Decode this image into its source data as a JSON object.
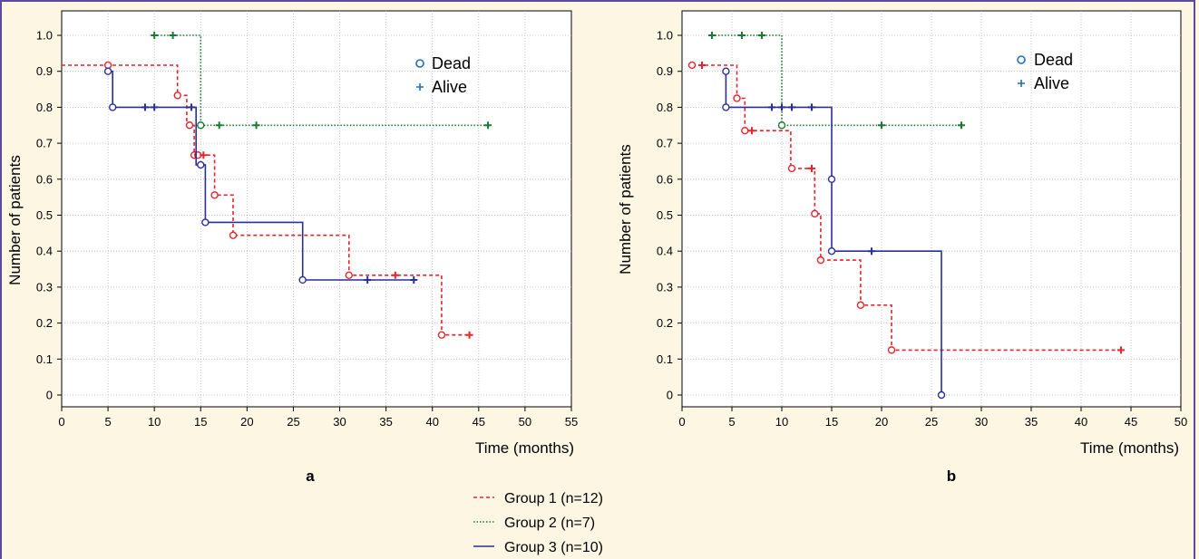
{
  "colors": {
    "group1": "#e8232a",
    "group2": "#1a7a32",
    "group3": "#2a2f9a",
    "dead_marker": "#1f6fb2",
    "alive_marker": "#1f6fb2",
    "frame": "#5b4a9e",
    "background": "#fdf6e3"
  },
  "shared_legend": [
    {
      "label": "Group 1 (n=12)",
      "series": "group1",
      "dash": "dashed"
    },
    {
      "label": "Group 2 (n=7)",
      "series": "group2",
      "dash": "dotted"
    },
    {
      "label": "Group 3 (n=10)",
      "series": "group3",
      "dash": "solid"
    }
  ],
  "chart_data": [
    {
      "type": "line",
      "panel": "a",
      "xlabel": "Time (months)",
      "ylabel": "Number of patients",
      "xlim": [
        0,
        55
      ],
      "ylim": [
        0,
        1.0
      ],
      "xticks": [
        "0",
        "5",
        "10",
        "15",
        "20",
        "25",
        "30",
        "35",
        "40",
        "45",
        "50",
        "55"
      ],
      "yticks": [
        "0",
        "0.1",
        "0.2",
        "0.3",
        "0.4",
        "0.5",
        "0.6",
        "0.7",
        "0.8",
        "0.9",
        "1.0"
      ],
      "grid": true,
      "legend": [
        {
          "marker": "o",
          "label": "Dead"
        },
        {
          "marker": "+",
          "label": "Alive"
        }
      ],
      "series": [
        {
          "name": "Group 1 (n=12)",
          "key": "group1",
          "steps": [
            [
              0,
              0.917
            ],
            [
              12.5,
              0.917
            ],
            [
              12.5,
              0.833
            ],
            [
              13.5,
              0.833
            ],
            [
              13.5,
              0.75
            ],
            [
              14.3,
              0.75
            ],
            [
              14.3,
              0.667
            ],
            [
              16.5,
              0.667
            ],
            [
              16.5,
              0.556
            ],
            [
              18.5,
              0.556
            ],
            [
              18.5,
              0.444
            ],
            [
              31,
              0.444
            ],
            [
              31,
              0.333
            ],
            [
              41,
              0.333
            ],
            [
              41,
              0.167
            ],
            [
              44,
              0.167
            ]
          ],
          "dead": [
            [
              5,
              0.917
            ],
            [
              12.5,
              0.833
            ],
            [
              13.8,
              0.75
            ],
            [
              14.3,
              0.667
            ],
            [
              14.7,
              0.667
            ],
            [
              16.5,
              0.556
            ],
            [
              18.5,
              0.444
            ],
            [
              31,
              0.333
            ],
            [
              41,
              0.167
            ]
          ],
          "alive": [
            [
              15.3,
              0.667
            ],
            [
              36,
              0.333
            ],
            [
              44,
              0.167
            ]
          ]
        },
        {
          "name": "Group 2 (n=7)",
          "key": "group2",
          "steps": [
            [
              10,
              1.0
            ],
            [
              15,
              1.0
            ],
            [
              15,
              0.75
            ],
            [
              46,
              0.75
            ]
          ],
          "dead": [
            [
              15,
              0.75
            ]
          ],
          "alive": [
            [
              10,
              1.0
            ],
            [
              12,
              1.0
            ],
            [
              17,
              0.75
            ],
            [
              21,
              0.75
            ],
            [
              46,
              0.75
            ]
          ]
        },
        {
          "name": "Group 3 (n=10)",
          "key": "group3",
          "steps": [
            [
              5,
              0.9
            ],
            [
              5.5,
              0.9
            ],
            [
              5.5,
              0.8
            ],
            [
              14.5,
              0.8
            ],
            [
              14.5,
              0.64
            ],
            [
              15.5,
              0.64
            ],
            [
              15.5,
              0.48
            ],
            [
              26,
              0.48
            ],
            [
              26,
              0.32
            ],
            [
              38,
              0.32
            ]
          ],
          "dead": [
            [
              5,
              0.9
            ],
            [
              5.5,
              0.8
            ],
            [
              15,
              0.64
            ],
            [
              15.5,
              0.48
            ],
            [
              26,
              0.32
            ]
          ],
          "alive": [
            [
              9,
              0.8
            ],
            [
              10,
              0.8
            ],
            [
              14,
              0.8
            ],
            [
              33,
              0.32
            ],
            [
              38,
              0.32
            ]
          ]
        }
      ]
    },
    {
      "type": "line",
      "panel": "b",
      "xlabel": "Time (months)",
      "ylabel": "Number of patients",
      "xlim": [
        0,
        50
      ],
      "ylim": [
        0,
        1.0
      ],
      "xticks": [
        "0",
        "5",
        "10",
        "15",
        "20",
        "25",
        "30",
        "35",
        "40",
        "45",
        "50"
      ],
      "yticks": [
        "0",
        "0.1",
        "0.2",
        "0.3",
        "0.4",
        "0.5",
        "0.6",
        "0.7",
        "0.8",
        "0.9",
        "1.0"
      ],
      "grid": true,
      "legend": [
        {
          "marker": "o",
          "label": "Dead"
        },
        {
          "marker": "+",
          "label": "Alive"
        }
      ],
      "series": [
        {
          "name": "Group 1 (n=12)",
          "key": "group1",
          "steps": [
            [
              1,
              0.917
            ],
            [
              5.5,
              0.917
            ],
            [
              5.5,
              0.825
            ],
            [
              6.3,
              0.825
            ],
            [
              6.3,
              0.735
            ],
            [
              10.9,
              0.735
            ],
            [
              10.9,
              0.63
            ],
            [
              13.3,
              0.63
            ],
            [
              13.3,
              0.504
            ],
            [
              13.9,
              0.504
            ],
            [
              13.9,
              0.375
            ],
            [
              17.9,
              0.375
            ],
            [
              17.9,
              0.25
            ],
            [
              21,
              0.25
            ],
            [
              21,
              0.125
            ],
            [
              44,
              0.125
            ]
          ],
          "dead": [
            [
              1,
              0.917
            ],
            [
              5.5,
              0.825
            ],
            [
              6.3,
              0.735
            ],
            [
              11,
              0.63
            ],
            [
              13.3,
              0.504
            ],
            [
              13.9,
              0.375
            ],
            [
              17.9,
              0.25
            ],
            [
              21,
              0.125
            ]
          ],
          "alive": [
            [
              2,
              0.917
            ],
            [
              7,
              0.735
            ],
            [
              13,
              0.63
            ],
            [
              44,
              0.125
            ]
          ]
        },
        {
          "name": "Group 2 (n=7)",
          "key": "group2",
          "steps": [
            [
              3,
              1.0
            ],
            [
              10,
              1.0
            ],
            [
              10,
              0.75
            ],
            [
              28,
              0.75
            ]
          ],
          "dead": [
            [
              10,
              0.75
            ]
          ],
          "alive": [
            [
              3,
              1.0
            ],
            [
              6,
              1.0
            ],
            [
              8,
              1.0
            ],
            [
              20,
              0.75
            ],
            [
              28,
              0.75
            ]
          ]
        },
        {
          "name": "Group 3 (n=10)",
          "key": "group3",
          "steps": [
            [
              4.4,
              0.9
            ],
            [
              4.4,
              0.8
            ],
            [
              15,
              0.8
            ],
            [
              15,
              0.6
            ],
            [
              15,
              0.4
            ],
            [
              26,
              0.4
            ],
            [
              26,
              0
            ]
          ],
          "dead": [
            [
              4.4,
              0.9
            ],
            [
              4.4,
              0.8
            ],
            [
              15,
              0.6
            ],
            [
              15,
              0.4
            ],
            [
              26,
              0
            ]
          ],
          "alive": [
            [
              9,
              0.8
            ],
            [
              10,
              0.8
            ],
            [
              11,
              0.8
            ],
            [
              13,
              0.8
            ],
            [
              19,
              0.4
            ]
          ]
        }
      ]
    }
  ]
}
